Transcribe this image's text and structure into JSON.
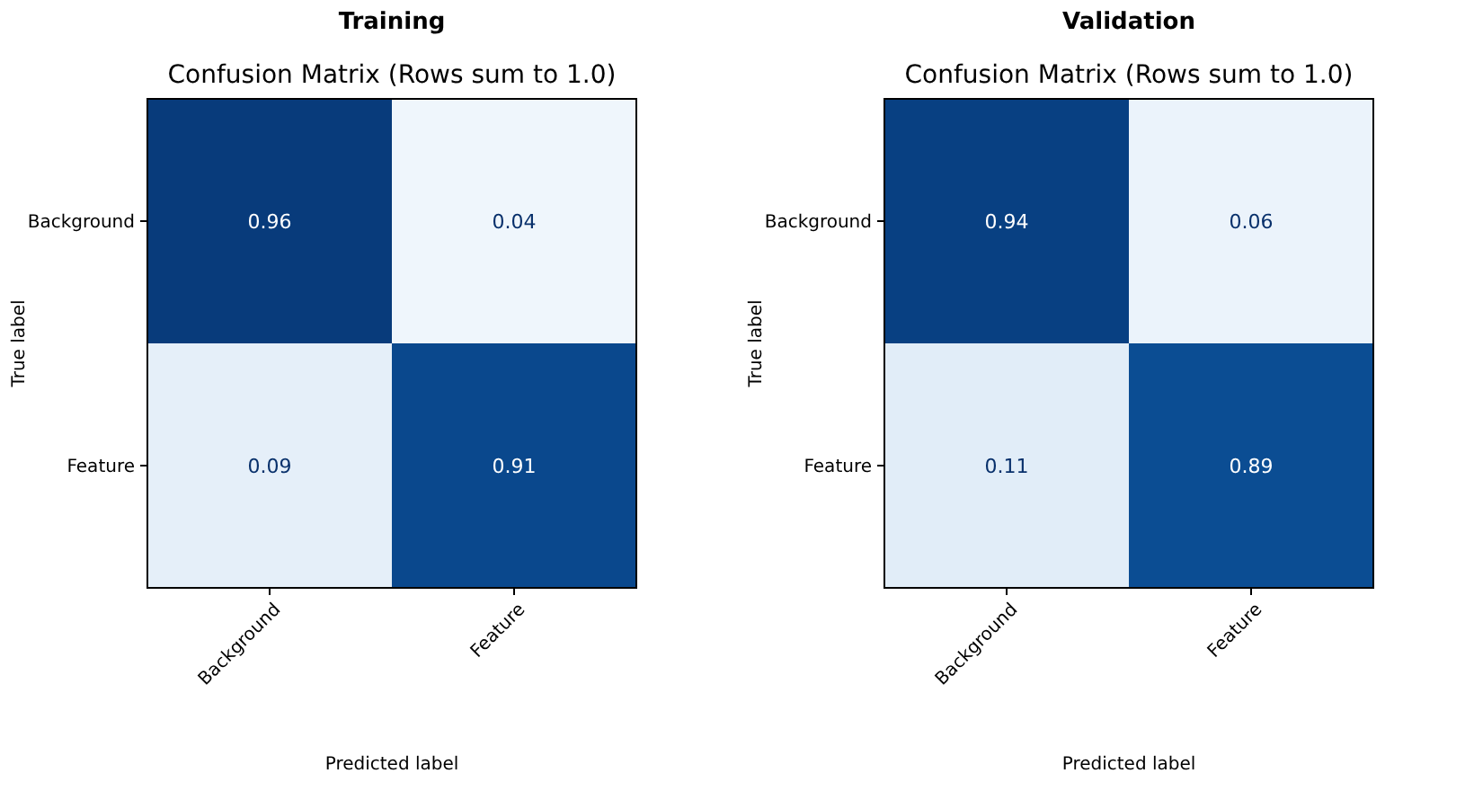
{
  "chart_data": [
    {
      "type": "heatmap",
      "title": "Training",
      "subtitle": "Confusion Matrix (Rows sum to 1.0)",
      "xlabel": "Predicted label",
      "ylabel": "True label",
      "categories": [
        "Background",
        "Feature"
      ],
      "y_categories": [
        "Background",
        "Feature"
      ],
      "cells": [
        [
          0.96,
          0.04
        ],
        [
          0.09,
          0.91
        ]
      ],
      "data_labels": true
    },
    {
      "type": "heatmap",
      "title": "Validation",
      "subtitle": "Confusion Matrix (Rows sum to 1.0)",
      "xlabel": "Predicted label",
      "ylabel": "True label",
      "categories": [
        "Background",
        "Feature"
      ],
      "y_categories": [
        "Background",
        "Feature"
      ],
      "cells": [
        [
          0.94,
          0.06
        ],
        [
          0.11,
          0.89
        ]
      ],
      "data_labels": true
    }
  ]
}
